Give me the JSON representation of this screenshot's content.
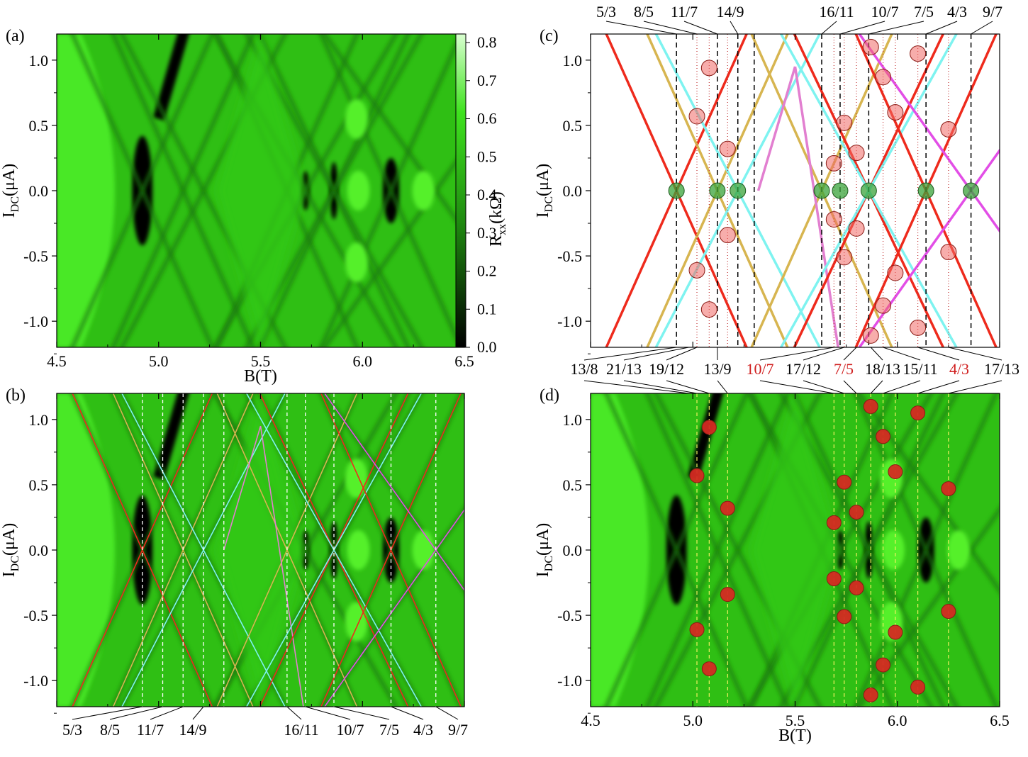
{
  "panels": {
    "a": {
      "label": "(a)"
    },
    "b": {
      "label": "(b)"
    },
    "c": {
      "label": "(c)"
    },
    "d": {
      "label": "(d)"
    }
  },
  "axes": {
    "x_label": "B(T)",
    "y_label_main": "I",
    "y_label_sub": "DC",
    "y_label_unit": "(μA)",
    "x_ticks": [
      "4.5",
      "5.0",
      "5.5",
      "6.0",
      "6.5"
    ],
    "y_ticks": [
      "1.0",
      "0.5",
      "0.0",
      "-0.5",
      "-1.0"
    ]
  },
  "colorbar": {
    "label_main": "R",
    "label_sub": "xx",
    "label_unit": "(kΩ)",
    "ticks": [
      "0.8",
      "0.7",
      "0.6",
      "0.5",
      "0.4",
      "0.3",
      "0.2",
      "0.1",
      "0.0"
    ]
  },
  "colors": {
    "background_green": "#3fe21e",
    "dark": "#000000",
    "red": "#ee2a1c",
    "gold": "#d7b550",
    "cyan": "#7ef3f0",
    "pink": "#e27fd0",
    "magenta": "#e24ee6",
    "marker_red": "#e8302a",
    "marker_green": "#3aa33a",
    "highlight_red": "#d01f1f"
  },
  "fraction_labels_top": [
    "5/3",
    "8/5",
    "11/7",
    "14/9",
    "16/11",
    "10/7",
    "7/5",
    "4/3",
    "9/7"
  ],
  "fraction_labels_bottom_c": [
    "13/8",
    "21/13",
    "19/12",
    "13/9",
    "10/7",
    "17/12",
    "7/5",
    "18/13",
    "15/11",
    "4/3",
    "17/13"
  ],
  "fraction_labels_bottom_c_red": [
    "10/7",
    "7/5",
    "4/3"
  ],
  "chart_data": {
    "type": "heatmap",
    "x_label": "B(T)",
    "y_label": "IDC(μA)",
    "xlim": [
      4.5,
      6.5
    ],
    "ylim": [
      -1.2,
      1.2
    ],
    "colorbar_label": "Rxx(kΩ)",
    "colorbar_range": [
      0.0,
      0.8
    ],
    "zero_bias_crossings_B": [
      4.92,
      5.12,
      5.22,
      5.63,
      5.72,
      5.86,
      6.14,
      6.36
    ],
    "crossing_fractions_top": [
      {
        "label": "5/3",
        "B": 4.92
      },
      {
        "label": "8/5",
        "B": 5.12
      },
      {
        "label": "11/7",
        "B": 5.12
      },
      {
        "label": "14/9",
        "B": 5.22
      },
      {
        "label": "16/11",
        "B": 5.63
      },
      {
        "label": "10/7",
        "B": 5.72
      },
      {
        "label": "7/5",
        "B": 5.86
      },
      {
        "label": "4/3",
        "B": 6.14
      },
      {
        "label": "9/7",
        "B": 6.36
      }
    ],
    "marker_points": [
      {
        "B": 5.02,
        "I": 0.57
      },
      {
        "B": 5.02,
        "I": -0.61
      },
      {
        "B": 5.08,
        "I": 0.94
      },
      {
        "B": 5.08,
        "I": -0.91
      },
      {
        "B": 5.17,
        "I": 0.32
      },
      {
        "B": 5.17,
        "I": -0.34
      },
      {
        "B": 5.69,
        "I": 0.21
      },
      {
        "B": 5.69,
        "I": -0.22
      },
      {
        "B": 5.74,
        "I": 0.52
      },
      {
        "B": 5.74,
        "I": -0.51
      },
      {
        "B": 5.8,
        "I": 0.29
      },
      {
        "B": 5.8,
        "I": -0.29
      },
      {
        "B": 5.87,
        "I": 1.1
      },
      {
        "B": 5.87,
        "I": -1.11
      },
      {
        "B": 5.93,
        "I": 0.87
      },
      {
        "B": 5.93,
        "I": -0.88
      },
      {
        "B": 5.99,
        "I": 0.6
      },
      {
        "B": 5.99,
        "I": -0.63
      },
      {
        "B": 6.1,
        "I": 1.05
      },
      {
        "B": 6.1,
        "I": -1.05
      },
      {
        "B": 6.25,
        "I": 0.47
      },
      {
        "B": 6.25,
        "I": -0.47
      }
    ],
    "lines": [
      {
        "color": "red",
        "B0": 4.92,
        "slope": 3.5
      },
      {
        "color": "gold",
        "B0": 5.12,
        "slope": 3.5
      },
      {
        "color": "cyan",
        "B0": 5.22,
        "slope": 3.0
      },
      {
        "color": "gold",
        "B0": 5.63,
        "slope": 3.5
      },
      {
        "color": "pink",
        "B0": 5.72,
        "slope": 2.7
      },
      {
        "color": "red",
        "B0": 5.86,
        "slope": 3.3
      },
      {
        "color": "cyan",
        "B0": 5.86,
        "slope": 2.8
      },
      {
        "color": "red",
        "B0": 6.14,
        "slope": 3.5
      },
      {
        "color": "magenta",
        "B0": 6.36,
        "slope": 2.2
      }
    ]
  }
}
